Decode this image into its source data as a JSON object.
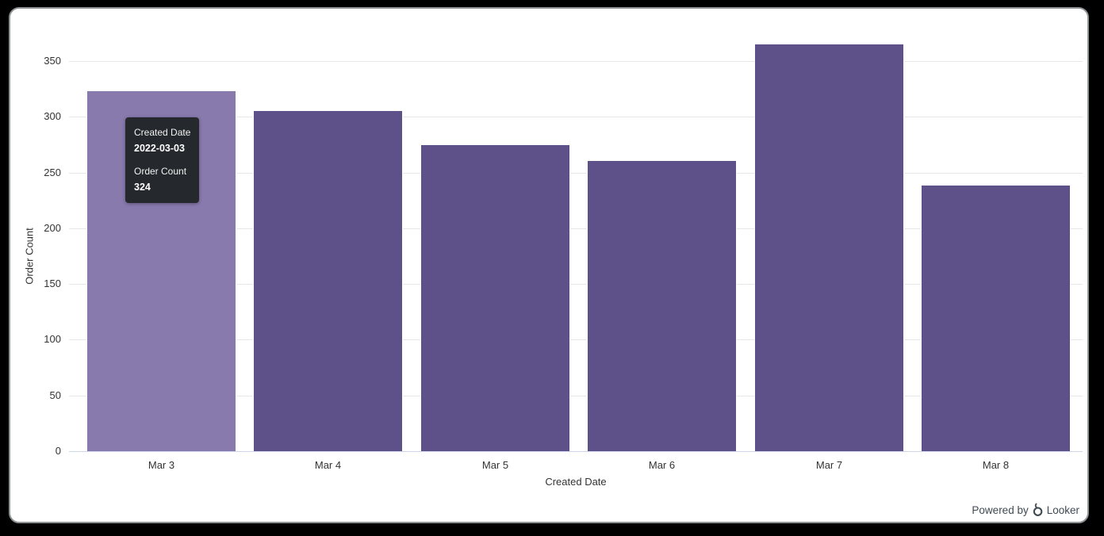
{
  "chart_data": {
    "type": "bar",
    "categories": [
      "Mar 3",
      "Mar 4",
      "Mar 5",
      "Mar 6",
      "Mar 7",
      "Mar 8"
    ],
    "values": [
      324,
      306,
      275,
      261,
      366,
      239
    ],
    "title": "",
    "xlabel": "Created Date",
    "ylabel": "Order Count",
    "ylim": [
      0,
      370
    ],
    "yticks": [
      0,
      50,
      100,
      150,
      200,
      250,
      300,
      350
    ],
    "grid": true,
    "legend": "none",
    "bar_color": "#5e5189",
    "bar_hover_color": "#897aae",
    "hovered_index": 0
  },
  "tooltip": {
    "label1": "Created Date",
    "value1": "2022-03-03",
    "label2": "Order Count",
    "value2": "324",
    "background": "#25282c",
    "text_color": "#ffffff"
  },
  "footer": {
    "powered_by": "Powered by",
    "brand": "Looker"
  },
  "colors": {
    "frame_background": "#000000",
    "card_border": "#8e9396",
    "gridline": "#e7e7e7",
    "axis_line": "#ccd6eb",
    "axis_text": "#333333",
    "powered_text": "#3f4a52"
  }
}
